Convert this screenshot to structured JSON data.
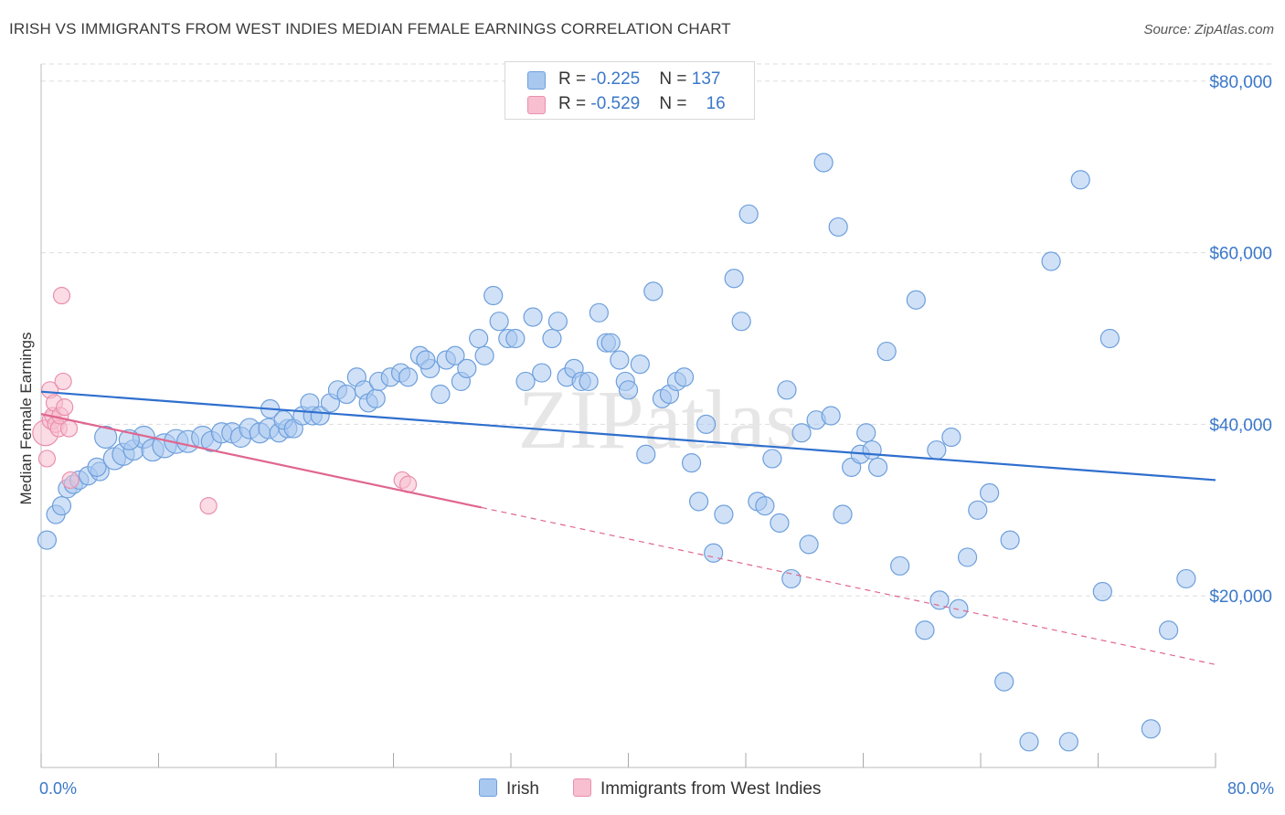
{
  "title": "IRISH VS IMMIGRANTS FROM WEST INDIES MEDIAN FEMALE EARNINGS CORRELATION CHART",
  "source": "Source: ZipAtlas.com",
  "watermark": "ZIPatlas",
  "legend": {
    "rows": [
      {
        "r_label": "R = ",
        "r_value": "-0.225",
        "n_label": "N = ",
        "n_value": "137"
      },
      {
        "r_label": "R = ",
        "r_value": "-0.529",
        "n_label": "N = ",
        "n_value": "16"
      }
    ]
  },
  "bottom_legend": {
    "irish": "Irish",
    "west_indies": "Immigrants from West Indies"
  },
  "colors": {
    "irish_fill": "#a9c8f0",
    "irish_stroke": "#6d9fdc",
    "irish_line": "#2f6fce",
    "wi_fill": "#f7bfd0",
    "wi_stroke": "#ea8fae",
    "wi_line": "#e0668f",
    "axis_label": "#3b78c9",
    "grid": "#dddddd"
  },
  "chart_data": {
    "type": "scatter",
    "xlabel": "",
    "ylabel": "Median Female Earnings",
    "xlim": [
      0,
      80
    ],
    "ylim": [
      0,
      82000
    ],
    "x_tick_labels": [
      "0.0%",
      "80.0%"
    ],
    "y_tick_labels": [
      "$20,000",
      "$40,000",
      "$60,000",
      "$80,000"
    ],
    "y_ticks": [
      20000,
      40000,
      60000,
      80000
    ],
    "x_ticks": [
      0,
      8,
      16,
      24,
      32,
      40,
      48,
      56,
      64,
      72,
      80
    ],
    "grid": true,
    "series": [
      {
        "name": "Irish",
        "trend": {
          "x": [
            0,
            80
          ],
          "y": [
            43800,
            33500
          ],
          "dashed_from": null
        },
        "points": [
          [
            0.4,
            26500,
            10
          ],
          [
            1.0,
            29500,
            10
          ],
          [
            1.4,
            30500,
            10
          ],
          [
            1.8,
            32500,
            10
          ],
          [
            2.2,
            33000,
            10
          ],
          [
            2.6,
            33500,
            10
          ],
          [
            3.2,
            34000,
            10
          ],
          [
            4.0,
            34500,
            10
          ],
          [
            3.8,
            35000,
            10
          ],
          [
            5.0,
            36000,
            12
          ],
          [
            5.6,
            36500,
            12
          ],
          [
            6.3,
            37000,
            11
          ],
          [
            7.0,
            38500,
            12
          ],
          [
            7.6,
            37000,
            12
          ],
          [
            8.4,
            37500,
            13
          ],
          [
            9.2,
            38000,
            13
          ],
          [
            10.0,
            38000,
            12
          ],
          [
            11.0,
            38500,
            12
          ],
          [
            11.6,
            38000,
            11
          ],
          [
            12.3,
            39000,
            11
          ],
          [
            13.0,
            39000,
            11
          ],
          [
            13.6,
            38500,
            11
          ],
          [
            14.2,
            39500,
            11
          ],
          [
            14.9,
            39000,
            11
          ],
          [
            15.5,
            39500,
            11
          ],
          [
            16.2,
            39000,
            10
          ],
          [
            16.8,
            39500,
            10
          ],
          [
            4.4,
            38500,
            12
          ],
          [
            6.0,
            38200,
            11
          ],
          [
            15.6,
            41800,
            10
          ],
          [
            16.5,
            40500,
            10
          ],
          [
            17.2,
            39500,
            10
          ],
          [
            17.8,
            41000,
            10
          ],
          [
            18.5,
            41000,
            10
          ],
          [
            18.3,
            42500,
            10
          ],
          [
            19.0,
            41000,
            10
          ],
          [
            19.7,
            42500,
            10
          ],
          [
            20.2,
            44000,
            10
          ],
          [
            20.8,
            43500,
            10
          ],
          [
            21.5,
            45500,
            10
          ],
          [
            22.0,
            44000,
            10
          ],
          [
            22.3,
            42500,
            10
          ],
          [
            22.8,
            43000,
            10
          ],
          [
            23.0,
            45000,
            10
          ],
          [
            23.8,
            45500,
            10
          ],
          [
            24.5,
            46000,
            10
          ],
          [
            25.0,
            45500,
            10
          ],
          [
            25.8,
            48000,
            10
          ],
          [
            26.5,
            46500,
            10
          ],
          [
            26.2,
            47500,
            10
          ],
          [
            27.2,
            43500,
            10
          ],
          [
            27.6,
            47500,
            10
          ],
          [
            28.2,
            48000,
            10
          ],
          [
            28.6,
            45000,
            10
          ],
          [
            29.0,
            46500,
            10
          ],
          [
            29.8,
            50000,
            10
          ],
          [
            30.2,
            48000,
            10
          ],
          [
            30.8,
            55000,
            10
          ],
          [
            31.2,
            52000,
            10
          ],
          [
            31.8,
            50000,
            10
          ],
          [
            32.3,
            50000,
            10
          ],
          [
            33.0,
            45000,
            10
          ],
          [
            33.5,
            52500,
            10
          ],
          [
            34.1,
            46000,
            10
          ],
          [
            34.8,
            50000,
            10
          ],
          [
            35.2,
            52000,
            10
          ],
          [
            35.8,
            45500,
            10
          ],
          [
            36.3,
            46500,
            10
          ],
          [
            36.8,
            45000,
            10
          ],
          [
            37.3,
            45000,
            10
          ],
          [
            38.0,
            53000,
            10
          ],
          [
            38.5,
            49500,
            10
          ],
          [
            38.8,
            49500,
            10
          ],
          [
            39.4,
            47500,
            10
          ],
          [
            39.8,
            45000,
            10
          ],
          [
            40.0,
            44000,
            10
          ],
          [
            40.8,
            47000,
            10
          ],
          [
            41.2,
            36500,
            10
          ],
          [
            41.7,
            55500,
            10
          ],
          [
            42.3,
            43000,
            10
          ],
          [
            42.8,
            43500,
            10
          ],
          [
            43.3,
            45000,
            10
          ],
          [
            43.8,
            45500,
            10
          ],
          [
            44.3,
            35500,
            10
          ],
          [
            44.8,
            31000,
            10
          ],
          [
            45.3,
            40000,
            10
          ],
          [
            45.8,
            25000,
            10
          ],
          [
            46.5,
            29500,
            10
          ],
          [
            47.2,
            57000,
            10
          ],
          [
            47.7,
            52000,
            10
          ],
          [
            48.2,
            64500,
            10
          ],
          [
            48.8,
            31000,
            10
          ],
          [
            49.3,
            30500,
            10
          ],
          [
            49.8,
            36000,
            10
          ],
          [
            50.3,
            28500,
            10
          ],
          [
            50.8,
            44000,
            10
          ],
          [
            51.1,
            22000,
            10
          ],
          [
            51.8,
            39000,
            10
          ],
          [
            52.3,
            26000,
            10
          ],
          [
            52.8,
            40500,
            10
          ],
          [
            53.3,
            70500,
            10
          ],
          [
            53.8,
            41000,
            10
          ],
          [
            54.3,
            63000,
            10
          ],
          [
            54.6,
            29500,
            10
          ],
          [
            55.2,
            35000,
            10
          ],
          [
            55.8,
            36500,
            10
          ],
          [
            56.2,
            39000,
            10
          ],
          [
            56.6,
            37000,
            10
          ],
          [
            57.0,
            35000,
            10
          ],
          [
            57.6,
            48500,
            10
          ],
          [
            58.5,
            23500,
            10
          ],
          [
            59.6,
            54500,
            10
          ],
          [
            60.2,
            16000,
            10
          ],
          [
            61.0,
            37000,
            10
          ],
          [
            61.2,
            19500,
            10
          ],
          [
            62.0,
            38500,
            10
          ],
          [
            62.5,
            18500,
            10
          ],
          [
            63.1,
            24500,
            10
          ],
          [
            63.8,
            30000,
            10
          ],
          [
            64.6,
            32000,
            10
          ],
          [
            65.6,
            10000,
            10
          ],
          [
            66.0,
            26500,
            10
          ],
          [
            67.3,
            3000,
            10
          ],
          [
            68.8,
            59000,
            10
          ],
          [
            70.0,
            3000,
            10
          ],
          [
            70.8,
            68500,
            10
          ],
          [
            72.3,
            20500,
            10
          ],
          [
            72.8,
            50000,
            10
          ],
          [
            75.6,
            4500,
            10
          ],
          [
            76.8,
            16000,
            10
          ],
          [
            78.0,
            22000,
            10
          ]
        ]
      },
      {
        "name": "Immigrants from West Indies",
        "trend": {
          "x": [
            0,
            30,
            80
          ],
          "y": [
            41200,
            30300,
            12000
          ],
          "dashed_from": 30
        },
        "points": [
          [
            0.3,
            39000,
            14
          ],
          [
            0.4,
            36000,
            9
          ],
          [
            0.6,
            44000,
            9
          ],
          [
            0.7,
            40500,
            10
          ],
          [
            0.8,
            41000,
            9
          ],
          [
            0.9,
            42500,
            9
          ],
          [
            1.0,
            40000,
            9
          ],
          [
            1.2,
            39500,
            9
          ],
          [
            1.3,
            41000,
            9
          ],
          [
            1.4,
            55000,
            9
          ],
          [
            1.5,
            45000,
            9
          ],
          [
            1.6,
            42000,
            9
          ],
          [
            1.9,
            39500,
            9
          ],
          [
            2.0,
            33500,
            9
          ],
          [
            11.4,
            30500,
            9
          ],
          [
            24.6,
            33500,
            9
          ],
          [
            25.0,
            33000,
            9
          ]
        ]
      }
    ]
  }
}
